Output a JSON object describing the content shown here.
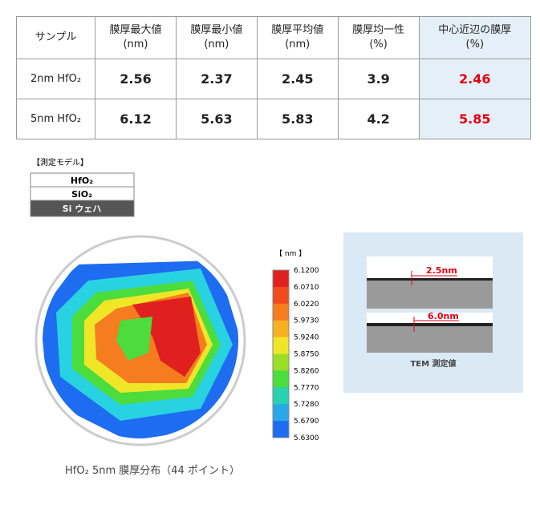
{
  "table": {
    "header": [
      "サンプル",
      "膜厚最大値\n(nm)",
      "膜厚最小値\n(nm)",
      "膜厚平均値\n(nm)",
      "膜厚均一性\n(%)",
      "中心近辺の膜厚\n(%)"
    ],
    "rows": [
      [
        "2nm HfO₂",
        "2.56",
        "2.37",
        "2.45",
        "3.9",
        "2.46"
      ],
      [
        "5nm HfO₂",
        "6.12",
        "5.63",
        "5.83",
        "4.2",
        "5.85"
      ]
    ]
  },
  "model": {
    "title": "【測定モデル】",
    "layers": [
      "HfO₂",
      "SiO₂",
      "Si ウェハ"
    ]
  },
  "map": {
    "unit": "【 nm 】",
    "scale": [
      "6.1200",
      "6.0710",
      "6.0220",
      "5.9730",
      "5.9240",
      "5.8750",
      "5.8260",
      "5.7770",
      "5.7280",
      "5.6790",
      "5.6300"
    ],
    "caption": "HfO₂ 5nm 膜厚分布（44 ポイント）"
  },
  "tem": {
    "labels": [
      "2.5nm",
      "6.0nm"
    ],
    "caption": "TEM 測定値"
  }
}
